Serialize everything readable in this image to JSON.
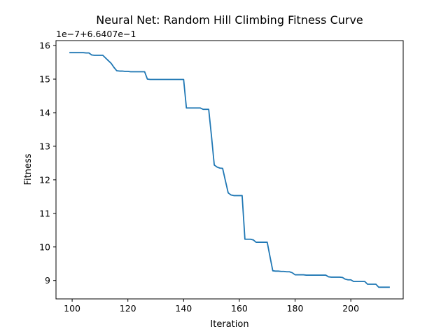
{
  "chart_data": {
    "type": "line",
    "title": "Neural Net: Random Hill Climbing Fitness Curve",
    "xlabel": "Iteration",
    "ylabel": "Fitness",
    "y_offset_label": "1e−7+6.6407e−1",
    "xlim": [
      94.2,
      218.8
    ],
    "ylim": [
      8.452,
      16.148
    ],
    "x_ticks": [
      100,
      120,
      140,
      160,
      180,
      200
    ],
    "y_ticks": [
      9,
      10,
      11,
      12,
      13,
      14,
      15,
      16
    ],
    "x_tick_labels": [
      "100",
      "120",
      "140",
      "160",
      "180",
      "200"
    ],
    "y_tick_labels": [
      "9",
      "10",
      "11",
      "12",
      "13",
      "14",
      "15",
      "16"
    ],
    "grid": false,
    "series": [
      {
        "color": "#1f77b4",
        "x": [
          99,
          100,
          101,
          102,
          103,
          104,
          105,
          106,
          107,
          108,
          109,
          110,
          111,
          112,
          113,
          114,
          115,
          116,
          117,
          118,
          119,
          120,
          121,
          122,
          123,
          124,
          125,
          126,
          127,
          128,
          129,
          130,
          131,
          132,
          133,
          134,
          135,
          136,
          137,
          138,
          139,
          140,
          141,
          142,
          143,
          144,
          145,
          146,
          147,
          148,
          149,
          150,
          151,
          152,
          153,
          154,
          155,
          156,
          157,
          158,
          159,
          160,
          161,
          162,
          163,
          164,
          165,
          166,
          167,
          168,
          169,
          170,
          171,
          172,
          173,
          174,
          175,
          176,
          177,
          178,
          179,
          180,
          181,
          182,
          183,
          184,
          185,
          186,
          187,
          188,
          189,
          190,
          191,
          192,
          193,
          194,
          195,
          196,
          197,
          198,
          199,
          200,
          201,
          202,
          203,
          204,
          205,
          206,
          207,
          208,
          209,
          210,
          211,
          212,
          213,
          214
        ],
        "values": [
          15.79,
          15.79,
          15.79,
          15.79,
          15.79,
          15.79,
          15.78,
          15.78,
          15.72,
          15.71,
          15.71,
          15.71,
          15.71,
          15.63,
          15.55,
          15.47,
          15.35,
          15.25,
          15.24,
          15.24,
          15.23,
          15.23,
          15.22,
          15.22,
          15.22,
          15.22,
          15.22,
          15.22,
          15.0,
          14.99,
          14.99,
          14.99,
          14.99,
          14.99,
          14.99,
          14.99,
          14.99,
          14.99,
          14.99,
          14.99,
          14.99,
          14.99,
          14.14,
          14.14,
          14.14,
          14.14,
          14.14,
          14.14,
          14.1,
          14.1,
          14.1,
          13.3,
          12.44,
          12.38,
          12.35,
          12.34,
          11.97,
          11.61,
          11.55,
          11.53,
          11.53,
          11.53,
          11.53,
          10.23,
          10.23,
          10.23,
          10.21,
          10.14,
          10.14,
          10.14,
          10.14,
          10.14,
          9.71,
          9.29,
          9.28,
          9.28,
          9.27,
          9.27,
          9.26,
          9.26,
          9.23,
          9.17,
          9.17,
          9.17,
          9.17,
          9.16,
          9.16,
          9.16,
          9.16,
          9.16,
          9.16,
          9.16,
          9.16,
          9.11,
          9.1,
          9.1,
          9.1,
          9.1,
          9.09,
          9.04,
          9.02,
          9.02,
          8.97,
          8.97,
          8.97,
          8.97,
          8.97,
          8.89,
          8.89,
          8.89,
          8.89,
          8.8,
          8.8,
          8.8,
          8.8,
          8.8
        ]
      }
    ]
  }
}
